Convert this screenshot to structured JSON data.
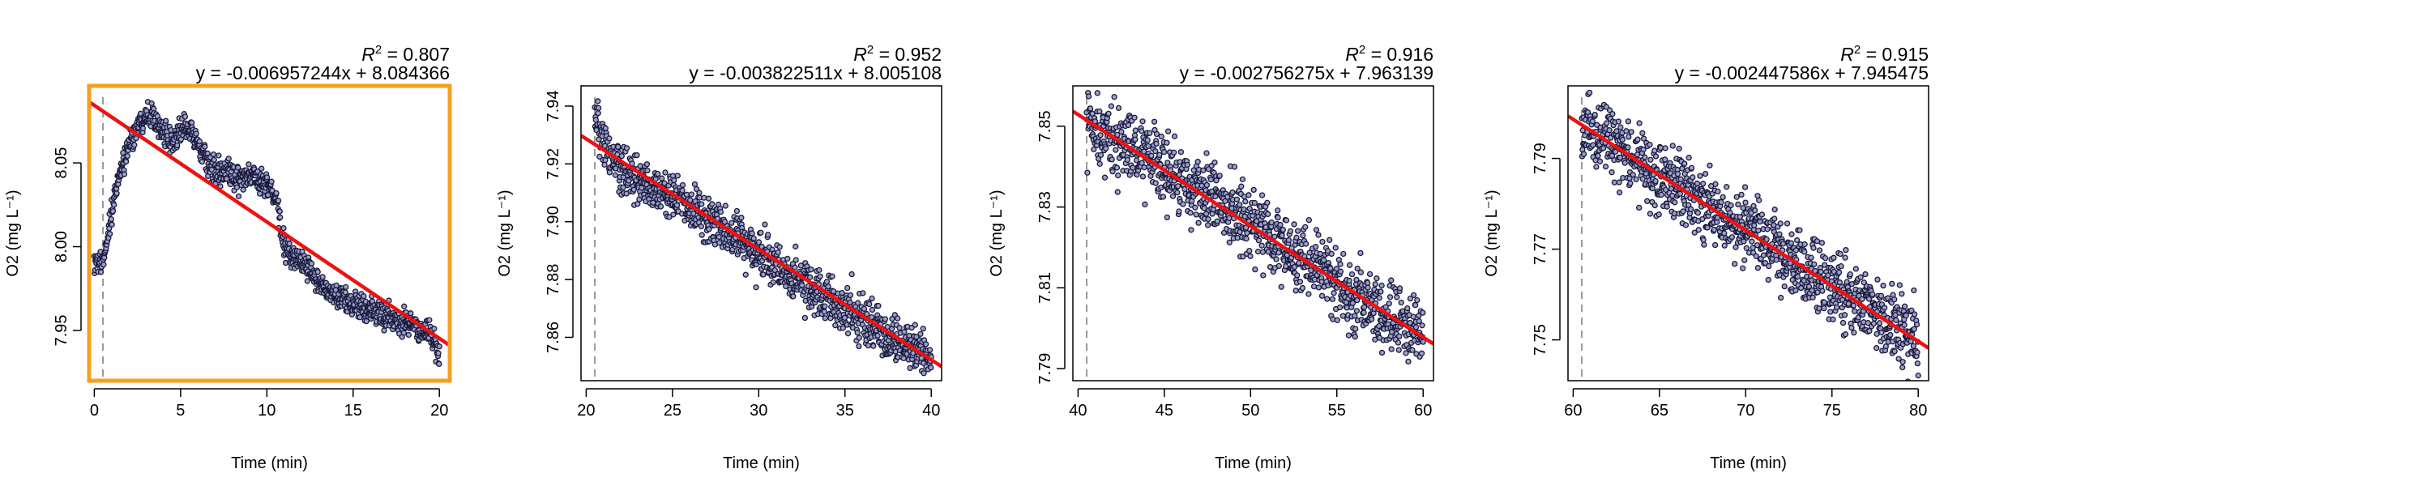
{
  "chart_data": [
    {
      "type": "scatter",
      "xlabel": "Time (min)",
      "ylabel": "O2 (mg L⁻¹)",
      "r2_value": "0.807",
      "equation": "y = -0.006957244x + 8.084366",
      "xlim": [
        -0.3,
        20.6
      ],
      "ylim": [
        7.92,
        8.096
      ],
      "xticks": [
        0,
        5,
        10,
        15,
        20
      ],
      "yticks": [
        7.95,
        8.0,
        8.05
      ],
      "ytick_labels": [
        "7.95",
        "8.00",
        "8.05"
      ],
      "fit": {
        "slope": -0.006957244,
        "intercept": 8.084366,
        "x_range": [
          -0.3,
          20.6
        ]
      },
      "start_marker_x": 0.5,
      "highlight": true,
      "profile_x": [
        0,
        0.5,
        1,
        1.5,
        2,
        2.5,
        3,
        3.5,
        4,
        4.5,
        5,
        5.5,
        6,
        6.5,
        7,
        7.5,
        8,
        8.5,
        9,
        9.5,
        10,
        10.5,
        11,
        11.5,
        12,
        12.5,
        13,
        13.5,
        14,
        14.5,
        15,
        15.5,
        16,
        16.5,
        17,
        17.5,
        18,
        18.5,
        19,
        19.5,
        20
      ],
      "profile_y": [
        7.99,
        7.99,
        8.02,
        8.045,
        8.06,
        8.072,
        8.08,
        8.078,
        8.068,
        8.06,
        8.07,
        8.072,
        8.06,
        8.05,
        8.045,
        8.045,
        8.042,
        8.04,
        8.042,
        8.04,
        8.036,
        8.03,
        8.0,
        7.995,
        7.99,
        7.985,
        7.98,
        7.975,
        7.97,
        7.968,
        7.965,
        7.963,
        7.962,
        7.96,
        7.958,
        7.956,
        7.955,
        7.953,
        7.95,
        7.948,
        7.935
      ],
      "noise": 0.004,
      "n_points": 1000
    },
    {
      "type": "scatter",
      "xlabel": "Time (min)",
      "ylabel": "O2 (mg L⁻¹)",
      "r2_value": "0.952",
      "equation": "y = -0.003822511x + 8.005108",
      "xlim": [
        19.7,
        40.6
      ],
      "ylim": [
        7.845,
        7.947
      ],
      "xticks": [
        20,
        25,
        30,
        35,
        40
      ],
      "yticks": [
        7.86,
        7.88,
        7.9,
        7.92,
        7.94
      ],
      "ytick_labels": [
        "7.86",
        "7.88",
        "7.90",
        "7.92",
        "7.94"
      ],
      "fit": {
        "slope": -0.003822511,
        "intercept": 8.005108,
        "x_range": [
          19.7,
          40.6
        ]
      },
      "start_marker_x": 20.5,
      "highlight": false,
      "profile_x": [
        20.5,
        21,
        22,
        23,
        25,
        30,
        35,
        40
      ],
      "profile_y": [
        7.935,
        7.926,
        7.918,
        7.914,
        7.909,
        7.889,
        7.87,
        7.852
      ],
      "noise": 0.0042,
      "n_points": 1000
    },
    {
      "type": "scatter",
      "xlabel": "Time (min)",
      "ylabel": "O2 (mg L⁻¹)",
      "r2_value": "0.916",
      "equation": "y = -0.002756275x + 7.963139",
      "xlim": [
        39.7,
        60.6
      ],
      "ylim": [
        7.787,
        7.86
      ],
      "xticks": [
        40,
        45,
        50,
        55,
        60
      ],
      "yticks": [
        7.79,
        7.81,
        7.83,
        7.85
      ],
      "ytick_labels": [
        "7.79",
        "7.81",
        "7.83",
        "7.85"
      ],
      "fit": {
        "slope": -0.002756275,
        "intercept": 7.963139,
        "x_range": [
          39.7,
          60.6
        ]
      },
      "start_marker_x": 40.5,
      "highlight": false,
      "profile_x": [
        40.5,
        45,
        50,
        55,
        60
      ],
      "profile_y": [
        7.851,
        7.839,
        7.826,
        7.811,
        7.798
      ],
      "noise": 0.0045,
      "n_points": 1000
    },
    {
      "type": "scatter",
      "xlabel": "Time (min)",
      "ylabel": "O2 (mg L⁻¹)",
      "r2_value": "0.915",
      "equation": "y = -0.002447586x + 7.945475",
      "xlim": [
        59.7,
        80.6
      ],
      "ylim": [
        7.741,
        7.806
      ],
      "xticks": [
        60,
        65,
        70,
        75,
        80
      ],
      "yticks": [
        7.75,
        7.77,
        7.79
      ],
      "ytick_labels": [
        "7.75",
        "7.77",
        "7.79"
      ],
      "fit": {
        "slope": -0.002447586,
        "intercept": 7.945475,
        "x_range": [
          59.7,
          80.6
        ]
      },
      "start_marker_x": 60.5,
      "highlight": false,
      "profile_x": [
        60.5,
        65,
        70,
        75,
        80
      ],
      "profile_y": [
        7.797,
        7.786,
        7.774,
        7.762,
        7.75
      ],
      "noise": 0.004,
      "n_points": 1000
    }
  ],
  "colors": {
    "points_edge": "#1a1a3a",
    "points_fill": "#9aa0cc",
    "fit_line": "#ee1111",
    "highlight_frame": "#f5a020",
    "start_marker": "#999999",
    "axis": "#000000"
  }
}
